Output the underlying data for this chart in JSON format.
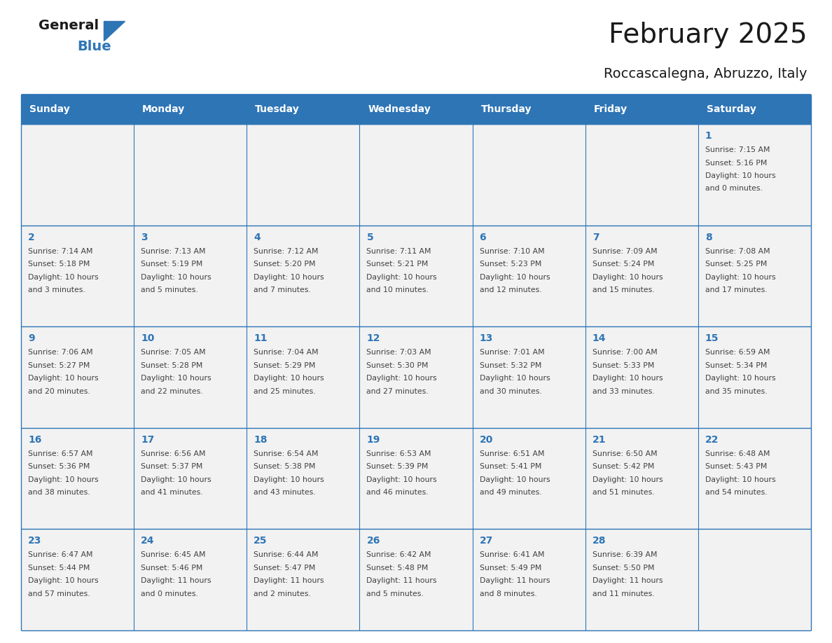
{
  "title": "February 2025",
  "subtitle": "Roccascalegna, Abruzzo, Italy",
  "days_of_week": [
    "Sunday",
    "Monday",
    "Tuesday",
    "Wednesday",
    "Thursday",
    "Friday",
    "Saturday"
  ],
  "header_bg": "#2E75B6",
  "header_text": "#FFFFFF",
  "cell_bg": "#F2F2F2",
  "border_color": "#2E75B6",
  "day_number_color": "#2E75B6",
  "cell_text_color": "#404040",
  "title_color": "#1a1a1a",
  "subtitle_color": "#1a1a1a",
  "logo_general_color": "#1a1a1a",
  "logo_blue_color": "#2E75B6",
  "weeks": [
    [
      {
        "day": null,
        "info": null
      },
      {
        "day": null,
        "info": null
      },
      {
        "day": null,
        "info": null
      },
      {
        "day": null,
        "info": null
      },
      {
        "day": null,
        "info": null
      },
      {
        "day": null,
        "info": null
      },
      {
        "day": 1,
        "sunrise": "Sunrise: 7:15 AM",
        "sunset": "Sunset: 5:16 PM",
        "daylight": "Daylight: 10 hours",
        "minutes": "and 0 minutes."
      }
    ],
    [
      {
        "day": 2,
        "sunrise": "Sunrise: 7:14 AM",
        "sunset": "Sunset: 5:18 PM",
        "daylight": "Daylight: 10 hours",
        "minutes": "and 3 minutes."
      },
      {
        "day": 3,
        "sunrise": "Sunrise: 7:13 AM",
        "sunset": "Sunset: 5:19 PM",
        "daylight": "Daylight: 10 hours",
        "minutes": "and 5 minutes."
      },
      {
        "day": 4,
        "sunrise": "Sunrise: 7:12 AM",
        "sunset": "Sunset: 5:20 PM",
        "daylight": "Daylight: 10 hours",
        "minutes": "and 7 minutes."
      },
      {
        "day": 5,
        "sunrise": "Sunrise: 7:11 AM",
        "sunset": "Sunset: 5:21 PM",
        "daylight": "Daylight: 10 hours",
        "minutes": "and 10 minutes."
      },
      {
        "day": 6,
        "sunrise": "Sunrise: 7:10 AM",
        "sunset": "Sunset: 5:23 PM",
        "daylight": "Daylight: 10 hours",
        "minutes": "and 12 minutes."
      },
      {
        "day": 7,
        "sunrise": "Sunrise: 7:09 AM",
        "sunset": "Sunset: 5:24 PM",
        "daylight": "Daylight: 10 hours",
        "minutes": "and 15 minutes."
      },
      {
        "day": 8,
        "sunrise": "Sunrise: 7:08 AM",
        "sunset": "Sunset: 5:25 PM",
        "daylight": "Daylight: 10 hours",
        "minutes": "and 17 minutes."
      }
    ],
    [
      {
        "day": 9,
        "sunrise": "Sunrise: 7:06 AM",
        "sunset": "Sunset: 5:27 PM",
        "daylight": "Daylight: 10 hours",
        "minutes": "and 20 minutes."
      },
      {
        "day": 10,
        "sunrise": "Sunrise: 7:05 AM",
        "sunset": "Sunset: 5:28 PM",
        "daylight": "Daylight: 10 hours",
        "minutes": "and 22 minutes."
      },
      {
        "day": 11,
        "sunrise": "Sunrise: 7:04 AM",
        "sunset": "Sunset: 5:29 PM",
        "daylight": "Daylight: 10 hours",
        "minutes": "and 25 minutes."
      },
      {
        "day": 12,
        "sunrise": "Sunrise: 7:03 AM",
        "sunset": "Sunset: 5:30 PM",
        "daylight": "Daylight: 10 hours",
        "minutes": "and 27 minutes."
      },
      {
        "day": 13,
        "sunrise": "Sunrise: 7:01 AM",
        "sunset": "Sunset: 5:32 PM",
        "daylight": "Daylight: 10 hours",
        "minutes": "and 30 minutes."
      },
      {
        "day": 14,
        "sunrise": "Sunrise: 7:00 AM",
        "sunset": "Sunset: 5:33 PM",
        "daylight": "Daylight: 10 hours",
        "minutes": "and 33 minutes."
      },
      {
        "day": 15,
        "sunrise": "Sunrise: 6:59 AM",
        "sunset": "Sunset: 5:34 PM",
        "daylight": "Daylight: 10 hours",
        "minutes": "and 35 minutes."
      }
    ],
    [
      {
        "day": 16,
        "sunrise": "Sunrise: 6:57 AM",
        "sunset": "Sunset: 5:36 PM",
        "daylight": "Daylight: 10 hours",
        "minutes": "and 38 minutes."
      },
      {
        "day": 17,
        "sunrise": "Sunrise: 6:56 AM",
        "sunset": "Sunset: 5:37 PM",
        "daylight": "Daylight: 10 hours",
        "minutes": "and 41 minutes."
      },
      {
        "day": 18,
        "sunrise": "Sunrise: 6:54 AM",
        "sunset": "Sunset: 5:38 PM",
        "daylight": "Daylight: 10 hours",
        "minutes": "and 43 minutes."
      },
      {
        "day": 19,
        "sunrise": "Sunrise: 6:53 AM",
        "sunset": "Sunset: 5:39 PM",
        "daylight": "Daylight: 10 hours",
        "minutes": "and 46 minutes."
      },
      {
        "day": 20,
        "sunrise": "Sunrise: 6:51 AM",
        "sunset": "Sunset: 5:41 PM",
        "daylight": "Daylight: 10 hours",
        "minutes": "and 49 minutes."
      },
      {
        "day": 21,
        "sunrise": "Sunrise: 6:50 AM",
        "sunset": "Sunset: 5:42 PM",
        "daylight": "Daylight: 10 hours",
        "minutes": "and 51 minutes."
      },
      {
        "day": 22,
        "sunrise": "Sunrise: 6:48 AM",
        "sunset": "Sunset: 5:43 PM",
        "daylight": "Daylight: 10 hours",
        "minutes": "and 54 minutes."
      }
    ],
    [
      {
        "day": 23,
        "sunrise": "Sunrise: 6:47 AM",
        "sunset": "Sunset: 5:44 PM",
        "daylight": "Daylight: 10 hours",
        "minutes": "and 57 minutes."
      },
      {
        "day": 24,
        "sunrise": "Sunrise: 6:45 AM",
        "sunset": "Sunset: 5:46 PM",
        "daylight": "Daylight: 11 hours",
        "minutes": "and 0 minutes."
      },
      {
        "day": 25,
        "sunrise": "Sunrise: 6:44 AM",
        "sunset": "Sunset: 5:47 PM",
        "daylight": "Daylight: 11 hours",
        "minutes": "and 2 minutes."
      },
      {
        "day": 26,
        "sunrise": "Sunrise: 6:42 AM",
        "sunset": "Sunset: 5:48 PM",
        "daylight": "Daylight: 11 hours",
        "minutes": "and 5 minutes."
      },
      {
        "day": 27,
        "sunrise": "Sunrise: 6:41 AM",
        "sunset": "Sunset: 5:49 PM",
        "daylight": "Daylight: 11 hours",
        "minutes": "and 8 minutes."
      },
      {
        "day": 28,
        "sunrise": "Sunrise: 6:39 AM",
        "sunset": "Sunset: 5:50 PM",
        "daylight": "Daylight: 11 hours",
        "minutes": "and 11 minutes."
      },
      {
        "day": null,
        "sunrise": null,
        "sunset": null,
        "daylight": null,
        "minutes": null
      }
    ]
  ]
}
